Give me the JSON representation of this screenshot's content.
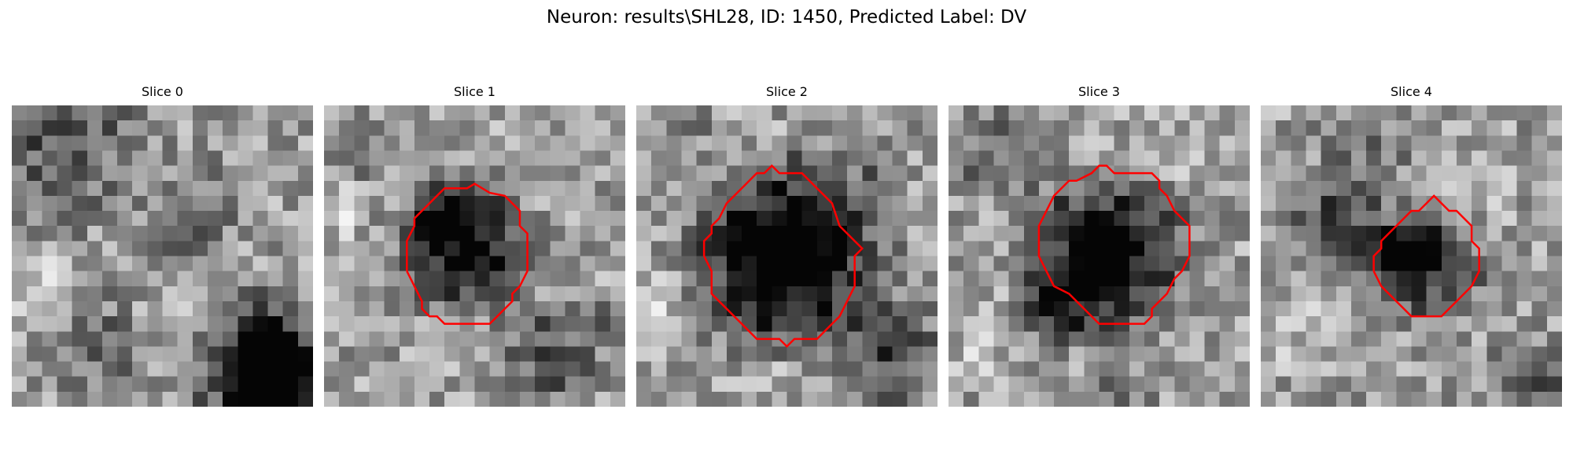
{
  "figure": {
    "title": "Neuron: results\\SHL28, ID: 1450, Predicted Label: DV",
    "contour_color": "#ff0000"
  },
  "slices": [
    {
      "title": "Slice 0",
      "has_contour": false,
      "contour": [],
      "dark_regions": [
        {
          "x": 3.0,
          "y": 2.0,
          "r": 5.0,
          "strength": 0.25
        },
        {
          "x": 12.0,
          "y": 7.0,
          "r": 3.0,
          "strength": 0.15
        },
        {
          "x": 17.0,
          "y": 16.0,
          "r": 3.0,
          "strength": 0.12
        },
        {
          "x": 6.0,
          "y": 16.0,
          "r": 3.0,
          "strength": 0.18
        },
        {
          "x": 16.5,
          "y": 17.5,
          "r": 4.0,
          "strength": 0.45
        },
        {
          "x": 17.0,
          "y": 18.0,
          "r": 2.5,
          "strength": 0.35
        },
        {
          "x": 10.5,
          "y": 10.0,
          "r": 2.0,
          "strength": 0.12
        }
      ],
      "bright_regions": [
        {
          "x": 1.0,
          "y": 12.0,
          "r": 2.5,
          "strength": 0.12
        },
        {
          "x": 11.0,
          "y": 15.0,
          "r": 3.0,
          "strength": 0.1
        }
      ]
    },
    {
      "title": "Slice 1",
      "has_contour": true,
      "contour": [
        [
          5.5,
          11
        ],
        [
          5.5,
          9
        ],
        [
          6,
          8
        ],
        [
          6,
          7.5
        ],
        [
          6.5,
          7
        ],
        [
          7,
          6.5
        ],
        [
          7.5,
          6
        ],
        [
          8,
          5.5
        ],
        [
          9.5,
          5.5
        ],
        [
          10,
          5.2
        ],
        [
          10.5,
          5.5
        ],
        [
          11,
          5.8
        ],
        [
          12,
          6
        ],
        [
          12.5,
          6.5
        ],
        [
          13,
          7
        ],
        [
          13,
          8
        ],
        [
          13.5,
          8.5
        ],
        [
          13.5,
          11
        ],
        [
          13,
          12
        ],
        [
          12.5,
          12.5
        ],
        [
          12.5,
          13
        ],
        [
          12,
          13.5
        ],
        [
          11.5,
          14
        ],
        [
          11,
          14.5
        ],
        [
          8,
          14.5
        ],
        [
          7.5,
          14
        ],
        [
          7,
          14
        ],
        [
          6.5,
          13.5
        ],
        [
          6.5,
          13
        ],
        [
          6,
          12
        ],
        [
          5.5,
          11
        ]
      ],
      "dark_regions": [
        {
          "x": 9.5,
          "y": 9.5,
          "r": 3.5,
          "strength": 0.55
        },
        {
          "x": 8.0,
          "y": 7.0,
          "r": 2.0,
          "strength": 0.2
        },
        {
          "x": 7.0,
          "y": 7.5,
          "r": 0.8,
          "strength": 0.45
        },
        {
          "x": 15.0,
          "y": 16.5,
          "r": 3.0,
          "strength": 0.28
        },
        {
          "x": 19.0,
          "y": 14.5,
          "r": 1.2,
          "strength": 0.35
        },
        {
          "x": 3.0,
          "y": 3.0,
          "r": 2.0,
          "strength": 0.12
        }
      ],
      "bright_regions": [
        {
          "x": 1.0,
          "y": 7.0,
          "r": 1.5,
          "strength": 0.15
        },
        {
          "x": 14.0,
          "y": 12.5,
          "r": 1.2,
          "strength": 0.12
        }
      ]
    },
    {
      "title": "Slice 2",
      "has_contour": true,
      "contour": [
        [
          4.5,
          10
        ],
        [
          4.5,
          9
        ],
        [
          5,
          8.5
        ],
        [
          5,
          8
        ],
        [
          5.5,
          7.5
        ],
        [
          6,
          6.5
        ],
        [
          7,
          5.5
        ],
        [
          8,
          4.5
        ],
        [
          8.5,
          4.5
        ],
        [
          9,
          4
        ],
        [
          9.5,
          4.5
        ],
        [
          10,
          4.5
        ],
        [
          11,
          4.5
        ],
        [
          11.5,
          5
        ],
        [
          12,
          5.5
        ],
        [
          12.5,
          6
        ],
        [
          13,
          6.5
        ],
        [
          13.5,
          8
        ],
        [
          14.5,
          9
        ],
        [
          15,
          9.5
        ],
        [
          14.5,
          10
        ],
        [
          14.5,
          12
        ],
        [
          14,
          13
        ],
        [
          13.5,
          14
        ],
        [
          13,
          14.5
        ],
        [
          12.5,
          15
        ],
        [
          12,
          15.5
        ],
        [
          11,
          15.5
        ],
        [
          10.5,
          15.5
        ],
        [
          10,
          16
        ],
        [
          9.5,
          15.5
        ],
        [
          9,
          15.5
        ],
        [
          8,
          15.5
        ],
        [
          7.5,
          15
        ],
        [
          7,
          14.5
        ],
        [
          6.5,
          14
        ],
        [
          6,
          13.5
        ],
        [
          5.5,
          13
        ],
        [
          5,
          12.5
        ],
        [
          5,
          11
        ],
        [
          4.5,
          10
        ]
      ],
      "dark_regions": [
        {
          "x": 10.0,
          "y": 10.0,
          "r": 5.2,
          "strength": 0.65
        },
        {
          "x": 10.5,
          "y": 9.0,
          "r": 2.5,
          "strength": 0.2
        },
        {
          "x": 17.0,
          "y": 16.5,
          "r": 3.0,
          "strength": 0.3
        },
        {
          "x": 16.0,
          "y": 4.0,
          "r": 1.5,
          "strength": 0.15
        },
        {
          "x": 3.0,
          "y": 2.0,
          "r": 2.0,
          "strength": 0.1
        }
      ],
      "bright_regions": [
        {
          "x": 1.0,
          "y": 13.0,
          "r": 2.0,
          "strength": 0.12
        },
        {
          "x": 9.5,
          "y": 17.5,
          "r": 1.5,
          "strength": 0.1
        }
      ]
    },
    {
      "title": "Slice 3",
      "has_contour": true,
      "contour": [
        [
          6,
          9
        ],
        [
          6,
          8
        ],
        [
          6.5,
          7
        ],
        [
          7,
          6
        ],
        [
          7.5,
          5.5
        ],
        [
          8,
          5
        ],
        [
          8.5,
          5
        ],
        [
          9.5,
          4.5
        ],
        [
          10,
          4
        ],
        [
          10.5,
          4
        ],
        [
          11,
          4.5
        ],
        [
          11.5,
          4.5
        ],
        [
          12.5,
          4.5
        ],
        [
          13.5,
          4.5
        ],
        [
          14,
          5
        ],
        [
          14,
          5.5
        ],
        [
          14.5,
          6
        ],
        [
          15,
          7
        ],
        [
          15.5,
          7.5
        ],
        [
          16,
          8
        ],
        [
          16,
          10
        ],
        [
          15.5,
          11
        ],
        [
          15,
          11.5
        ],
        [
          14.5,
          12.5
        ],
        [
          14,
          13
        ],
        [
          13.5,
          13.5
        ],
        [
          13.5,
          14
        ],
        [
          13,
          14.5
        ],
        [
          12.5,
          14.5
        ],
        [
          11.5,
          14.5
        ],
        [
          10,
          14.5
        ],
        [
          9.5,
          14
        ],
        [
          9,
          13.5
        ],
        [
          8.5,
          13
        ],
        [
          8,
          12.5
        ],
        [
          7,
          12
        ],
        [
          6.5,
          11
        ],
        [
          6,
          10
        ],
        [
          6,
          9
        ]
      ],
      "dark_regions": [
        {
          "x": 10.5,
          "y": 10.0,
          "r": 4.5,
          "strength": 0.55
        },
        {
          "x": 10.5,
          "y": 9.5,
          "r": 1.6,
          "strength": 0.35
        },
        {
          "x": 7.5,
          "y": 13.0,
          "r": 2.5,
          "strength": 0.25
        },
        {
          "x": 3.0,
          "y": 3.0,
          "r": 3.0,
          "strength": 0.18
        },
        {
          "x": 11.0,
          "y": 19.0,
          "r": 2.0,
          "strength": 0.12
        }
      ],
      "bright_regions": [
        {
          "x": 14.0,
          "y": 4.0,
          "r": 2.0,
          "strength": 0.12
        },
        {
          "x": 2.0,
          "y": 16.0,
          "r": 2.0,
          "strength": 0.1
        }
      ]
    },
    {
      "title": "Slice 4",
      "has_contour": true,
      "contour": [
        [
          7.5,
          11
        ],
        [
          7.5,
          10
        ],
        [
          8,
          9.5
        ],
        [
          8,
          9
        ],
        [
          8.5,
          8.5
        ],
        [
          9,
          8
        ],
        [
          9.5,
          7.5
        ],
        [
          10,
          7
        ],
        [
          10.5,
          7
        ],
        [
          11,
          6.5
        ],
        [
          11.5,
          6
        ],
        [
          12,
          6.5
        ],
        [
          12.5,
          7
        ],
        [
          13,
          7
        ],
        [
          13.5,
          7.5
        ],
        [
          14,
          8
        ],
        [
          14,
          9
        ],
        [
          14.5,
          9.5
        ],
        [
          14.5,
          11
        ],
        [
          14,
          12
        ],
        [
          13.5,
          12.5
        ],
        [
          13,
          13
        ],
        [
          12.5,
          13.5
        ],
        [
          12,
          14
        ],
        [
          11.5,
          14
        ],
        [
          10.5,
          14
        ],
        [
          10,
          14
        ],
        [
          9.5,
          13.5
        ],
        [
          9,
          13
        ],
        [
          8.5,
          12.5
        ],
        [
          8,
          12
        ],
        [
          7.5,
          11
        ]
      ],
      "dark_regions": [
        {
          "x": 11.0,
          "y": 10.5,
          "r": 3.0,
          "strength": 0.45
        },
        {
          "x": 11.2,
          "y": 9.5,
          "r": 1.0,
          "strength": 0.3
        },
        {
          "x": 5.0,
          "y": 8.0,
          "r": 3.0,
          "strength": 0.32
        },
        {
          "x": 8.0,
          "y": 10.0,
          "r": 1.8,
          "strength": 0.25
        },
        {
          "x": 7.0,
          "y": 3.0,
          "r": 3.0,
          "strength": 0.15
        },
        {
          "x": 18.0,
          "y": 18.0,
          "r": 2.5,
          "strength": 0.22
        }
      ],
      "bright_regions": [
        {
          "x": 15.0,
          "y": 5.0,
          "r": 2.0,
          "strength": 0.1
        },
        {
          "x": 2.0,
          "y": 15.0,
          "r": 2.0,
          "strength": 0.1
        }
      ]
    }
  ]
}
